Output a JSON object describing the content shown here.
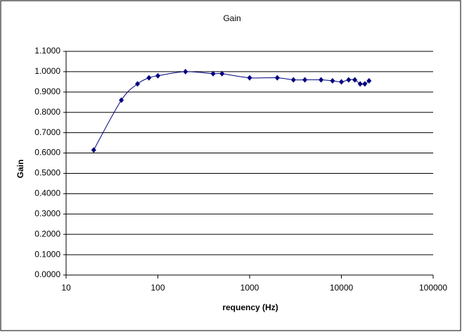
{
  "chart_data": {
    "type": "scatter",
    "title": "Gain",
    "x_label": "requency (Hz)",
    "y_label": "Gain",
    "x": [
      20,
      40,
      60,
      80,
      100,
      200,
      400,
      500,
      1000,
      2000,
      3000,
      4000,
      6000,
      8000,
      10000,
      12000,
      14000,
      16000,
      18000,
      20000
    ],
    "values": [
      0.615,
      0.86,
      0.94,
      0.97,
      0.98,
      1.0,
      0.99,
      0.99,
      0.97,
      0.97,
      0.96,
      0.96,
      0.96,
      0.955,
      0.95,
      0.96,
      0.96,
      0.94,
      0.94,
      0.955
    ],
    "color": "#000080",
    "smooth": true,
    "xlog": true,
    "grid": true,
    "xlim": [
      10,
      100000
    ],
    "xticks": [
      10,
      100,
      1000,
      10000,
      100000
    ],
    "ylim": [
      0,
      1.1
    ],
    "yticks": [
      {
        "value": 0,
        "label": "0.0000"
      },
      {
        "value": 0.1,
        "label": "0.1000"
      },
      {
        "value": 0.2,
        "label": "0.2000"
      },
      {
        "value": 0.3,
        "label": "0.3000"
      },
      {
        "value": 0.4,
        "label": "0.4000"
      },
      {
        "value": 0.5,
        "label": "0.5000"
      },
      {
        "value": 0.6,
        "label": "0.6000"
      },
      {
        "value": 0.7,
        "label": "0.7000"
      },
      {
        "value": 0.8,
        "label": "0.8000"
      },
      {
        "value": 0.9,
        "label": "0.9000"
      },
      {
        "value": 1.0,
        "label": "1.0000"
      },
      {
        "value": 1.1,
        "label": "1.1000"
      }
    ]
  }
}
